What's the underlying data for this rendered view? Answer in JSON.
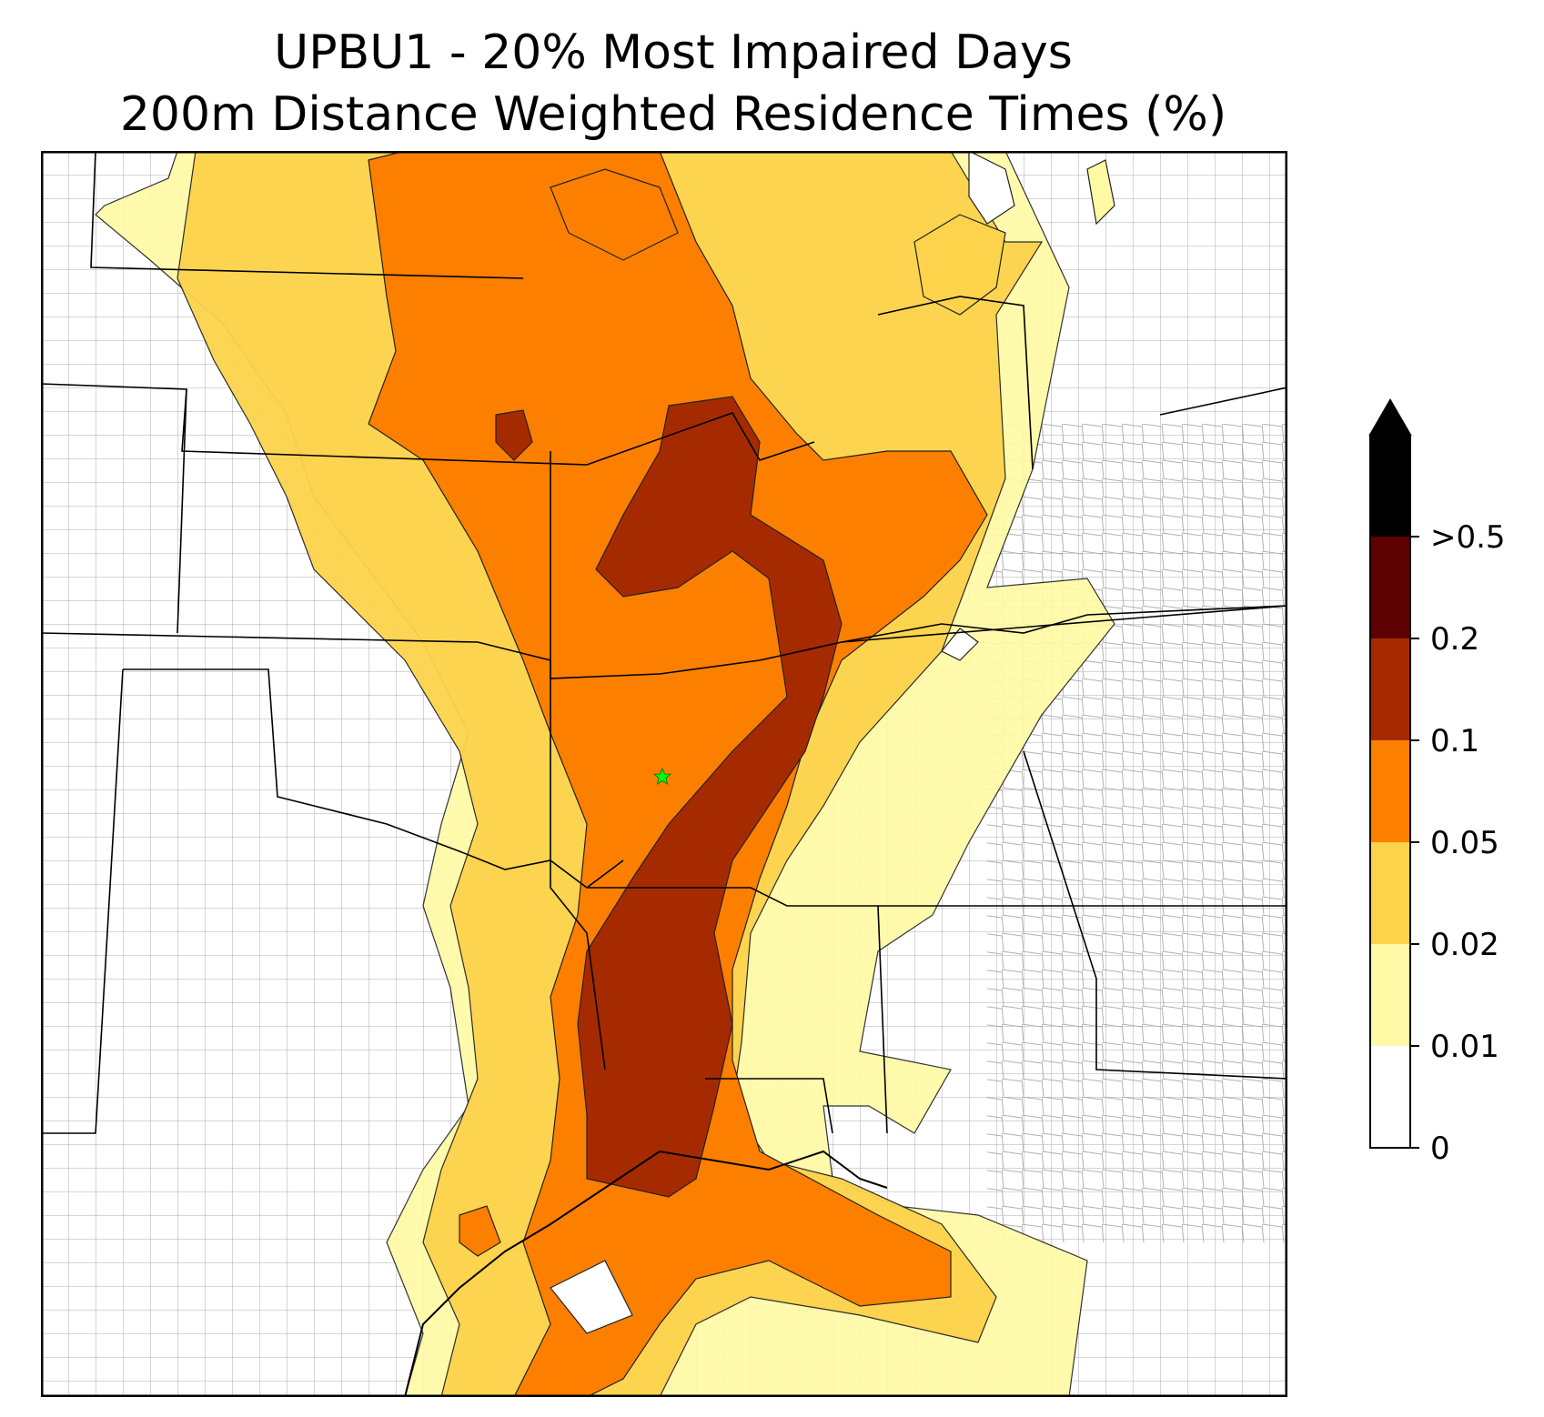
{
  "title": {
    "line1": "UPBU1 - 20% Most Impaired Days",
    "line2": "200m Distance Weighted Residence Times (%)"
  },
  "map": {
    "site_marker": "star-icon",
    "site_marker_color": "#00ff00",
    "state_border_color": "#000000",
    "county_border_color": "#999999"
  },
  "colorbar": {
    "extend": "max",
    "boundaries": [
      0,
      0.01,
      0.02,
      0.05,
      0.1,
      0.2,
      0.5
    ],
    "tick_labels": [
      "0",
      "0.01",
      "0.02",
      "0.05",
      "0.1",
      "0.2",
      ">0.5"
    ],
    "colors": [
      "#ffffff",
      "#fffaa5",
      "#fdd34c",
      "#fd7f00",
      "#a62a00",
      "#5c0000",
      "#000000"
    ]
  }
}
